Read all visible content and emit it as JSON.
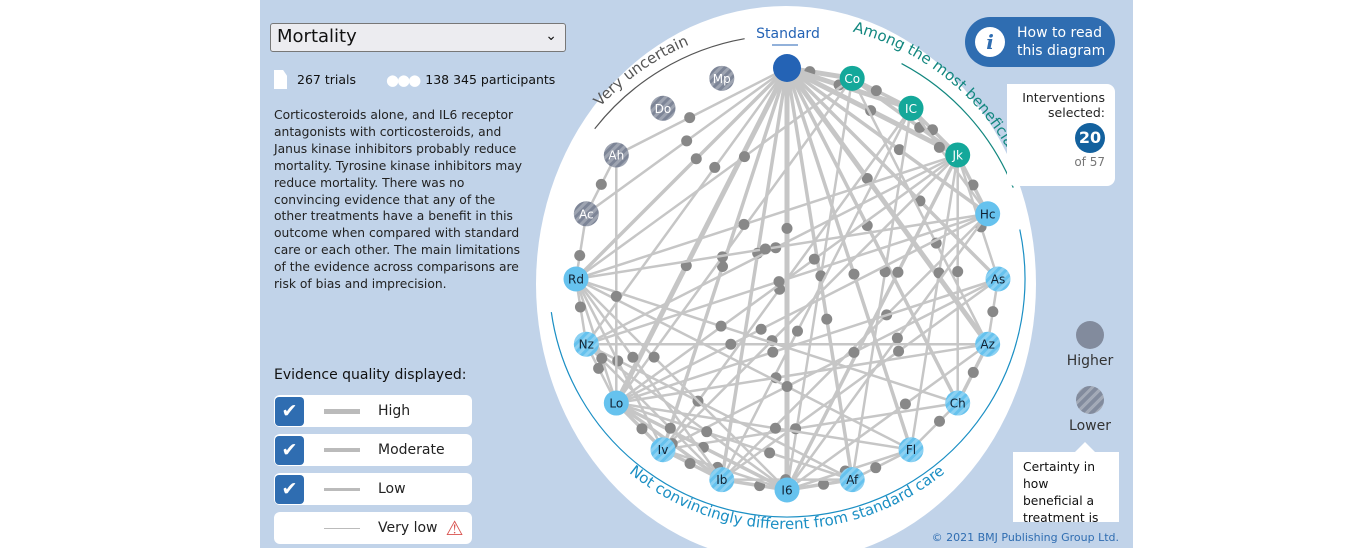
{
  "outcome_select": {
    "value": "Mortality"
  },
  "stats": {
    "trials": "267 trials",
    "participants": "138 345 participants",
    "trials_icon": "document-icon",
    "participants_icon": "people-icon"
  },
  "summary": "Corticosteroids alone, and IL6 receptor antagonists with corticosteroids, and Janus kinase inhibitors probably reduce mortality. Tyrosine kinase inhibitors may reduce mortality. There was no convincing evidence that any of the other treatments have a benefit in this outcome when compared with standard care or each other. The main limitations of the evidence across comparisons are risk of bias and imprecision.",
  "evidence": {
    "title": "Evidence quality displayed:",
    "items": [
      {
        "label": "High",
        "checked": true
      },
      {
        "label": "Moderate",
        "checked": true
      },
      {
        "label": "Low",
        "checked": true
      },
      {
        "label": "Very low",
        "checked": false,
        "warning": true
      }
    ]
  },
  "how_to_read": {
    "label_1": "How to read",
    "label_2": "this diagram",
    "icon": "info-icon"
  },
  "interventions": {
    "label_1": "Interventions",
    "label_2": "selected:",
    "count": "20",
    "total": "of 57"
  },
  "certainty": {
    "higher": "Higher",
    "lower": "Lower",
    "tooltip": "Certainty in how beneficial a treatment is"
  },
  "copyright": "© 2021 BMJ Publishing Group Ltd.",
  "colors": {
    "standard": "#2463b5",
    "beneficial": "#14a89a",
    "neutral": "#66c2ee",
    "uncertain": "#7d8597",
    "edge": "#c6c6c6",
    "node_dot": "#888888",
    "arc_beneficial": "#12877f",
    "arc_neutral": "#1b8fc4"
  },
  "groups": {
    "standard": "Standard",
    "beneficial": "Among the most beneficial",
    "uncertain": "Very uncertain",
    "neutral": "Not convincingly different from standard care"
  },
  "nodes": [
    {
      "id": "Std",
      "label": "",
      "group": "standard"
    },
    {
      "id": "Co",
      "label": "Co",
      "group": "beneficial"
    },
    {
      "id": "IC",
      "label": "IC",
      "group": "beneficial"
    },
    {
      "id": "Jk",
      "label": "Jk",
      "group": "beneficial"
    },
    {
      "id": "Hc",
      "label": "Hc",
      "group": "neutral"
    },
    {
      "id": "As",
      "label": "As",
      "group": "neutral",
      "lower": true
    },
    {
      "id": "Az",
      "label": "Az",
      "group": "neutral",
      "lower": true
    },
    {
      "id": "Ch",
      "label": "Ch",
      "group": "neutral",
      "lower": true
    },
    {
      "id": "Fl",
      "label": "Fl",
      "group": "neutral",
      "lower": true
    },
    {
      "id": "Af",
      "label": "Af",
      "group": "neutral",
      "lower": true
    },
    {
      "id": "I6",
      "label": "I6",
      "group": "neutral"
    },
    {
      "id": "Ib",
      "label": "Ib",
      "group": "neutral",
      "lower": true
    },
    {
      "id": "Iv",
      "label": "Iv",
      "group": "neutral",
      "lower": true
    },
    {
      "id": "Lo",
      "label": "Lo",
      "group": "neutral"
    },
    {
      "id": "Nz",
      "label": "Nz",
      "group": "neutral",
      "lower": true
    },
    {
      "id": "Rd",
      "label": "Rd",
      "group": "neutral"
    },
    {
      "id": "Ac",
      "label": "Ac",
      "group": "uncertain",
      "lower": true
    },
    {
      "id": "Ah",
      "label": "Ah",
      "group": "uncertain",
      "lower": true
    },
    {
      "id": "Do",
      "label": "Do",
      "group": "uncertain",
      "lower": true
    },
    {
      "id": "Mp",
      "label": "Mp",
      "group": "uncertain",
      "lower": true
    }
  ],
  "edges": [
    [
      "Std",
      "Co",
      "high"
    ],
    [
      "Std",
      "IC",
      "high"
    ],
    [
      "Std",
      "Jk",
      "high"
    ],
    [
      "Std",
      "Hc",
      "moderate"
    ],
    [
      "Std",
      "As",
      "moderate"
    ],
    [
      "Std",
      "Az",
      "high"
    ],
    [
      "Std",
      "Ch",
      "moderate"
    ],
    [
      "Std",
      "Fl",
      "moderate"
    ],
    [
      "Std",
      "Af",
      "moderate"
    ],
    [
      "Std",
      "I6",
      "high"
    ],
    [
      "Std",
      "Ib",
      "moderate"
    ],
    [
      "Std",
      "Iv",
      "moderate"
    ],
    [
      "Std",
      "Lo",
      "high"
    ],
    [
      "Std",
      "Nz",
      "low"
    ],
    [
      "Std",
      "Rd",
      "moderate"
    ],
    [
      "Std",
      "Ac",
      "low"
    ],
    [
      "Std",
      "Ah",
      "low"
    ],
    [
      "Co",
      "Jk",
      "moderate"
    ],
    [
      "Co",
      "IC",
      "moderate"
    ],
    [
      "Co",
      "I6",
      "low"
    ],
    [
      "Co",
      "Lo",
      "low"
    ],
    [
      "Co",
      "Az",
      "low"
    ],
    [
      "Co",
      "Rd",
      "low"
    ],
    [
      "IC",
      "Jk",
      "moderate"
    ],
    [
      "IC",
      "Iv",
      "low"
    ],
    [
      "IC",
      "Ib",
      "low"
    ],
    [
      "IC",
      "Hc",
      "low"
    ],
    [
      "IC",
      "Af",
      "low"
    ],
    [
      "Jk",
      "Hc",
      "moderate"
    ],
    [
      "Jk",
      "As",
      "low"
    ],
    [
      "Jk",
      "I6",
      "moderate"
    ],
    [
      "Jk",
      "Lo",
      "low"
    ],
    [
      "Jk",
      "Nz",
      "low"
    ],
    [
      "Jk",
      "Rd",
      "low"
    ],
    [
      "Jk",
      "Iv",
      "low"
    ],
    [
      "Jk",
      "Fl",
      "low"
    ],
    [
      "Jk",
      "Ch",
      "low"
    ],
    [
      "Hc",
      "Rd",
      "low"
    ],
    [
      "Hc",
      "Lo",
      "low"
    ],
    [
      "Hc",
      "Ib",
      "low"
    ],
    [
      "Hc",
      "I6",
      "low"
    ],
    [
      "Hc",
      "Nz",
      "low"
    ],
    [
      "As",
      "Lo",
      "low"
    ],
    [
      "As",
      "Ib",
      "low"
    ],
    [
      "As",
      "Iv",
      "low"
    ],
    [
      "As",
      "Az",
      "low"
    ],
    [
      "Az",
      "Lo",
      "low"
    ],
    [
      "Az",
      "Nz",
      "low"
    ],
    [
      "Az",
      "I6",
      "low"
    ],
    [
      "Az",
      "Ch",
      "moderate"
    ],
    [
      "Ch",
      "Iv",
      "low"
    ],
    [
      "Ch",
      "Rd",
      "low"
    ],
    [
      "Ch",
      "Fl",
      "low"
    ],
    [
      "Fl",
      "Lo",
      "low"
    ],
    [
      "Fl",
      "I6",
      "low"
    ],
    [
      "Fl",
      "Af",
      "low"
    ],
    [
      "Fl",
      "Rd",
      "low"
    ],
    [
      "Af",
      "I6",
      "moderate"
    ],
    [
      "Af",
      "Ib",
      "low"
    ],
    [
      "Af",
      "Nz",
      "low"
    ],
    [
      "Af",
      "Lo",
      "low"
    ],
    [
      "I6",
      "Ib",
      "moderate"
    ],
    [
      "I6",
      "Lo",
      "moderate"
    ],
    [
      "I6",
      "Iv",
      "low"
    ],
    [
      "I6",
      "Rd",
      "low"
    ],
    [
      "I6",
      "Nz",
      "low"
    ],
    [
      "Ib",
      "Lo",
      "moderate"
    ],
    [
      "Ib",
      "Iv",
      "moderate"
    ],
    [
      "Ib",
      "Rd",
      "low"
    ],
    [
      "Ib",
      "Nz",
      "low"
    ],
    [
      "Iv",
      "Lo",
      "moderate"
    ],
    [
      "Iv",
      "Rd",
      "low"
    ],
    [
      "Lo",
      "Nz",
      "low"
    ],
    [
      "Lo",
      "Rd",
      "low"
    ],
    [
      "Rd",
      "Nz",
      "low"
    ],
    [
      "Ah",
      "Ac",
      "low"
    ],
    [
      "Ah",
      "Lo",
      "low"
    ],
    [
      "Ac",
      "Rd",
      "low"
    ]
  ]
}
